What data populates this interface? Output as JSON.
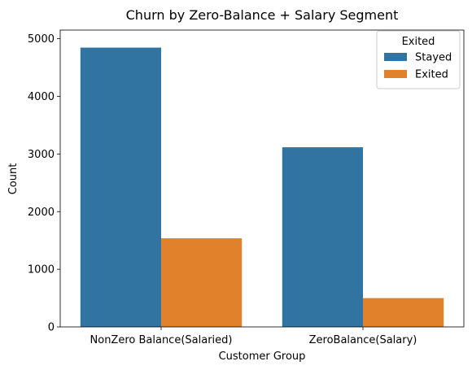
{
  "chart_data": {
    "type": "bar",
    "title": "Churn by Zero-Balance + Salary Segment",
    "xlabel": "Customer Group",
    "ylabel": "Count",
    "categories": [
      "NonZero Balance(Salaried)",
      "ZeroBalance(Salary)"
    ],
    "series": [
      {
        "name": "Stayed",
        "values": [
          4846,
          3117
        ],
        "color": "#3274a1"
      },
      {
        "name": "Exited",
        "values": [
          1537,
          500
        ],
        "color": "#e1812c"
      }
    ],
    "ylim": [
      0,
      5150
    ],
    "yticks": [
      0,
      1000,
      2000,
      3000,
      4000,
      5000
    ],
    "legend": {
      "title": "Exited",
      "placement": "top-right"
    },
    "grid": false
  }
}
